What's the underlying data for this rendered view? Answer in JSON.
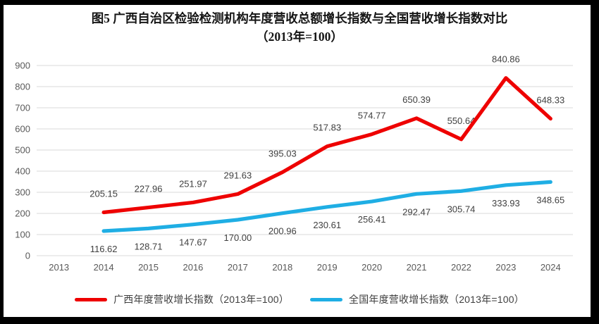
{
  "figure": {
    "border_color": "#000000",
    "background_color": "#ffffff"
  },
  "chart_data": {
    "type": "line",
    "title": "图5  广西自治区检验检测机构年度营收总额增长指数与全国营收增长指数对比（2013年=100）",
    "xlabel": "",
    "ylabel": "",
    "grid": true,
    "gridline_color": "#d9d9d9",
    "axis_label_color": "#595959",
    "data_label_color": "#404040",
    "legend_position": "bottom",
    "categories": [
      "2013",
      "2014",
      "2015",
      "2016",
      "2017",
      "2018",
      "2019",
      "2020",
      "2021",
      "2022",
      "2023",
      "2024"
    ],
    "y_axis": {
      "min": 0,
      "max": 900,
      "step": 100,
      "tick_labels": [
        "0",
        "100",
        "200",
        "300",
        "400",
        "500",
        "600",
        "700",
        "800",
        "900"
      ]
    },
    "series": [
      {
        "id": "guangxi",
        "name": "广西年度营收增长指数（2013年=100）",
        "color": "#ee0000",
        "label_position": "above",
        "values": [
          null,
          205.15,
          227.96,
          251.97,
          291.63,
          395.03,
          517.83,
          574.77,
          650.39,
          550.64,
          840.86,
          648.33
        ],
        "labels": [
          null,
          "205.15",
          "227.96",
          "251.97",
          "291.63",
          "395.03",
          "517.83",
          "574.77",
          "650.39",
          "550.64",
          "840.86",
          "648.33"
        ]
      },
      {
        "id": "national",
        "name": "全国年度营收增长指数（2013年=100）",
        "color": "#1fادe4",
        "label_position": "below",
        "values": [
          null,
          116.62,
          128.71,
          147.67,
          170.0,
          200.96,
          230.61,
          256.41,
          292.47,
          305.74,
          333.93,
          348.65
        ],
        "labels": [
          null,
          "116.62",
          "128.71",
          "147.67",
          "170.00",
          "200.96",
          "230.61",
          "256.41",
          "292.47",
          "305.74",
          "333.93",
          "348.65"
        ]
      }
    ]
  }
}
